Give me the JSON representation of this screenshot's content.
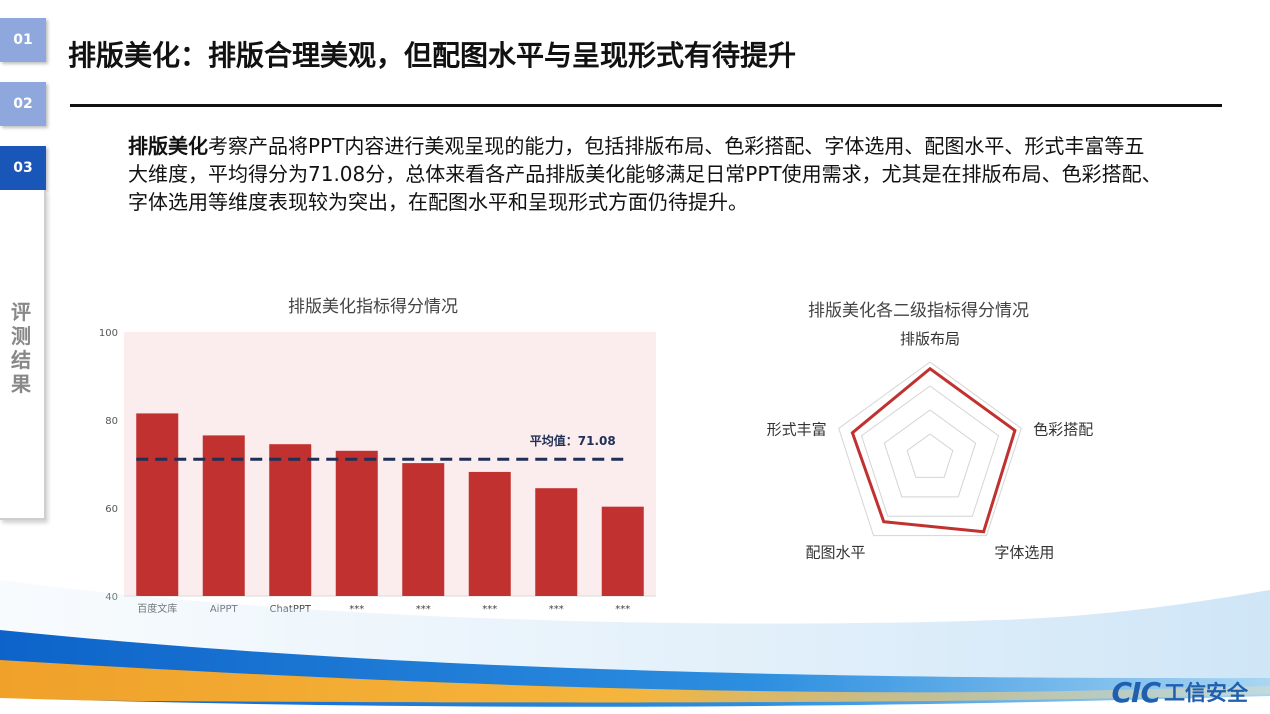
{
  "nav": {
    "tabs": [
      "01",
      "02",
      "03"
    ],
    "section_label": "评测结果"
  },
  "header": {
    "title": "排版美化：排版合理美观，但配图水平与呈现形式有待提升"
  },
  "intro": {
    "bold_lead": "排版美化",
    "text": "考察产品将PPT内容进行美观呈现的能力，包括排版布局、色彩搭配、字体选用、配图水平、形式丰富等五大维度，平均得分为71.08分，总体来看各产品排版美化能够满足日常PPT使用需求，尤其是在排版布局、色彩搭配、字体选用等维度表现较为突出，在配图水平和呈现形式方面仍待提升。"
  },
  "colors": {
    "bar": "#c0312f",
    "average_line": "#1f2f55",
    "radar_line": "#c0312f",
    "tab_inactive": "#8ea7dc",
    "tab_active": "#1a56b8",
    "brand": "#1f5fae"
  },
  "chart_data": [
    {
      "type": "bar",
      "title": "排版美化指标得分情况",
      "categories": [
        "百度文库",
        "AiPPT",
        "ChatPPT",
        "***",
        "***",
        "***",
        "***",
        "***"
      ],
      "values": [
        81.5,
        76.5,
        74.5,
        73,
        70.2,
        68.2,
        64.5,
        60.3
      ],
      "ylim": [
        40,
        100
      ],
      "yticks": [
        40,
        60,
        80,
        100
      ],
      "average": {
        "label": "平均值：71.08",
        "value": 71.08
      }
    },
    {
      "type": "radar",
      "title": "排版美化各二级指标得分情况",
      "axes": [
        "排版布局",
        "色彩搭配",
        "字体选用",
        "配图水平",
        "形式丰富"
      ],
      "values": [
        0.93,
        0.93,
        0.95,
        0.82,
        0.85
      ],
      "rings": 4
    }
  ],
  "footer": {
    "logo_mark": "CIC",
    "logo_text": "工信安全"
  }
}
